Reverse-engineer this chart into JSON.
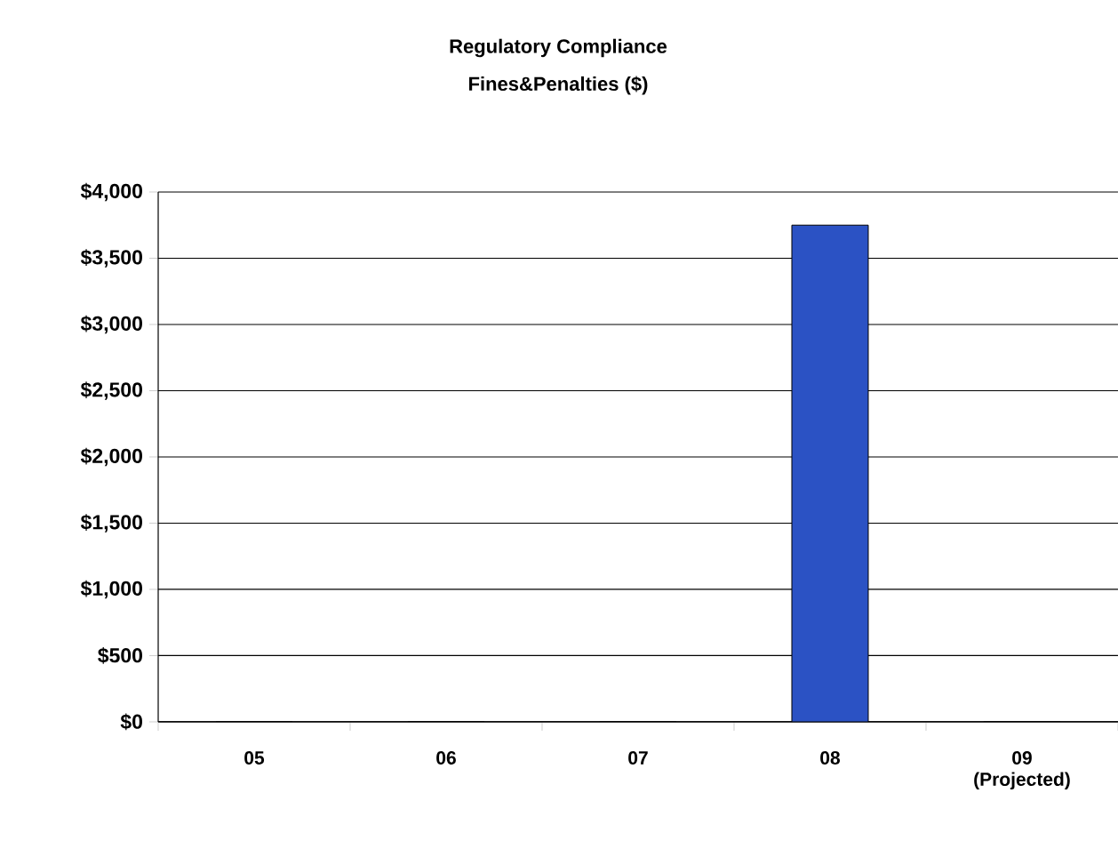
{
  "chart_data": {
    "type": "bar",
    "title": "Regulatory Compliance",
    "subtitle": "Fines&Penalties ($)",
    "categories": [
      "05",
      "06",
      "07",
      "08",
      "09 (Projected)"
    ],
    "values": [
      0,
      0,
      0,
      3750,
      0
    ],
    "color": "#2b52c4",
    "ylim": [
      0,
      4000
    ],
    "yticks": [
      {
        "value": 0,
        "label": "$0"
      },
      {
        "value": 500,
        "label": "$500"
      },
      {
        "value": 1000,
        "label": "$1,000"
      },
      {
        "value": 1500,
        "label": "$1,500"
      },
      {
        "value": 2000,
        "label": "$2,000"
      },
      {
        "value": 2500,
        "label": "$2,500"
      },
      {
        "value": 3000,
        "label": "$3,000"
      },
      {
        "value": 3500,
        "label": "$3,500"
      },
      {
        "value": 4000,
        "label": "$4,000"
      }
    ],
    "grid": "y"
  }
}
